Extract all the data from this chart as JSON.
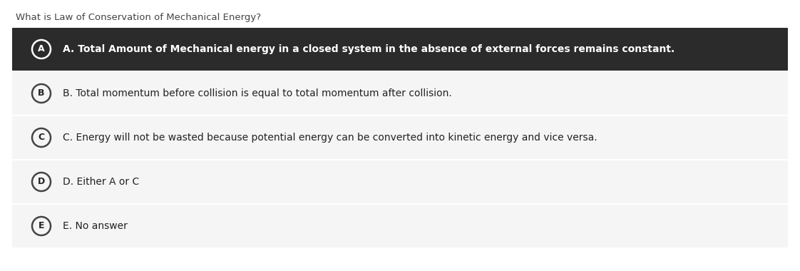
{
  "question": "What is Law of Conservation of Mechanical Energy?",
  "options": [
    {
      "letter": "A",
      "text": "A. Total Amount of Mechanical energy in a closed system in the absence of external forces remains constant.",
      "selected": true,
      "bg_color": "#2b2b2b",
      "text_color": "#ffffff",
      "circle_bg": "#2b2b2b",
      "circle_border": "#ffffff",
      "bold": true
    },
    {
      "letter": "B",
      "text": "B. Total momentum before collision is equal to total momentum after collision.",
      "selected": false,
      "bg_color": "#f5f5f5",
      "text_color": "#222222",
      "circle_bg": "#f5f5f5",
      "circle_border": "#444444",
      "bold": false
    },
    {
      "letter": "C",
      "text": "C. Energy will not be wasted because potential energy can be converted into kinetic energy and vice versa.",
      "selected": false,
      "bg_color": "#f5f5f5",
      "text_color": "#222222",
      "circle_bg": "#f5f5f5",
      "circle_border": "#444444",
      "bold": false
    },
    {
      "letter": "D",
      "text": "D. Either A or C",
      "selected": false,
      "bg_color": "#f5f5f5",
      "text_color": "#222222",
      "circle_bg": "#f5f5f5",
      "circle_border": "#444444",
      "bold": false
    },
    {
      "letter": "E",
      "text": "E. No answer",
      "selected": false,
      "bg_color": "#f5f5f5",
      "text_color": "#222222",
      "circle_bg": "#f5f5f5",
      "circle_border": "#444444",
      "bold": false
    }
  ],
  "question_fontsize": 9.5,
  "option_fontsize": 10.0,
  "overall_bg": "#ffffff",
  "question_color": "#444444",
  "fig_width": 11.22,
  "fig_height": 3.8,
  "dpi": 100
}
